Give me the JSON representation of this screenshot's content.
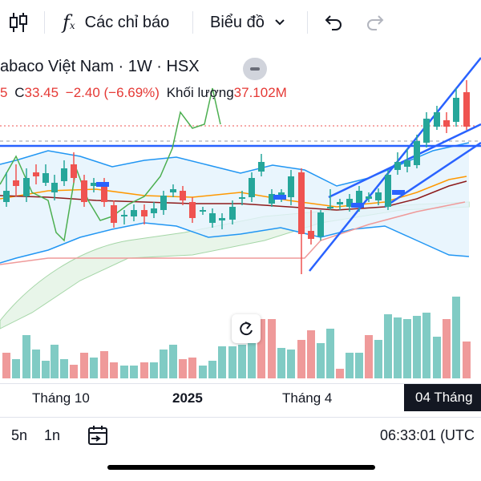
{
  "toolbar": {
    "indicators_label": "Các chỉ báo",
    "chart_type_label": "Biểu đồ"
  },
  "legend": {
    "title": "abaco Việt Nam · 1W · HSX",
    "prefix": "5",
    "close_label": "C",
    "close_value": "33.45",
    "change": "−2.40 (−6.69%)",
    "volume_label": "Khối lượng",
    "volume_value": "37.102M"
  },
  "xaxis": {
    "labels": [
      "Tháng 10",
      "2025",
      "Tháng 4"
    ],
    "cursor_label": "04 Tháng"
  },
  "bottombar": {
    "range_5d": "5n",
    "range_1d": "1n",
    "clock": "06:33:01 (UTC"
  },
  "colors": {
    "up": "#26a69a",
    "down": "#ef5350",
    "trendline": "#2962ff",
    "rsi": "#4caf50",
    "bollinger": "#2196f3"
  }
}
